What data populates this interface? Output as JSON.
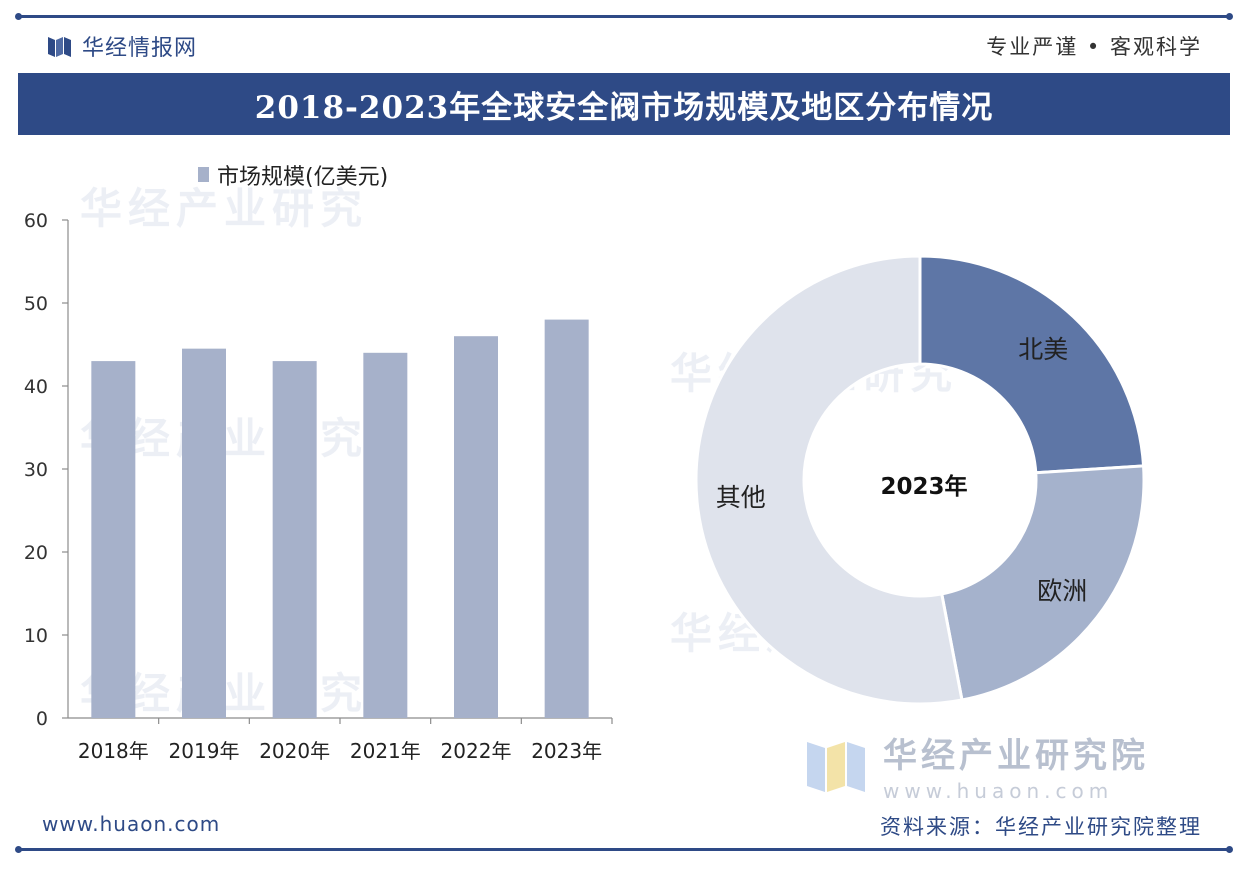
{
  "header": {
    "brand": "华经情报网",
    "slogan": "专业严谨 • 客观科学",
    "title": "2018-2023年全球安全阀市场规模及地区分布情况"
  },
  "chart_data": [
    {
      "type": "bar",
      "legend": "市场规模(亿美元)",
      "categories": [
        "2018年",
        "2019年",
        "2020年",
        "2021年",
        "2022年",
        "2023年"
      ],
      "values": [
        43,
        44.5,
        43,
        44,
        46,
        48
      ],
      "ylim": [
        0,
        60
      ],
      "yticks": [
        0,
        10,
        20,
        30,
        40,
        50,
        60
      ],
      "color": "#a6b1ca"
    },
    {
      "type": "pie",
      "donut": true,
      "center_label": "2023年",
      "slices": [
        {
          "label": "北美",
          "value": 24,
          "color": "#5e76a6"
        },
        {
          "label": "欧洲",
          "value": 23,
          "color": "#a5b2cc"
        },
        {
          "label": "其他",
          "value": 53,
          "color": "#dfe3ec"
        }
      ]
    }
  ],
  "watermarks": {
    "text": "华经产业研究",
    "institute_name": "华经产业研究院",
    "institute_url": "www.huaon.com"
  },
  "footer": {
    "url": "www.huaon.com",
    "source": "资料来源：华经产业研究院整理"
  }
}
